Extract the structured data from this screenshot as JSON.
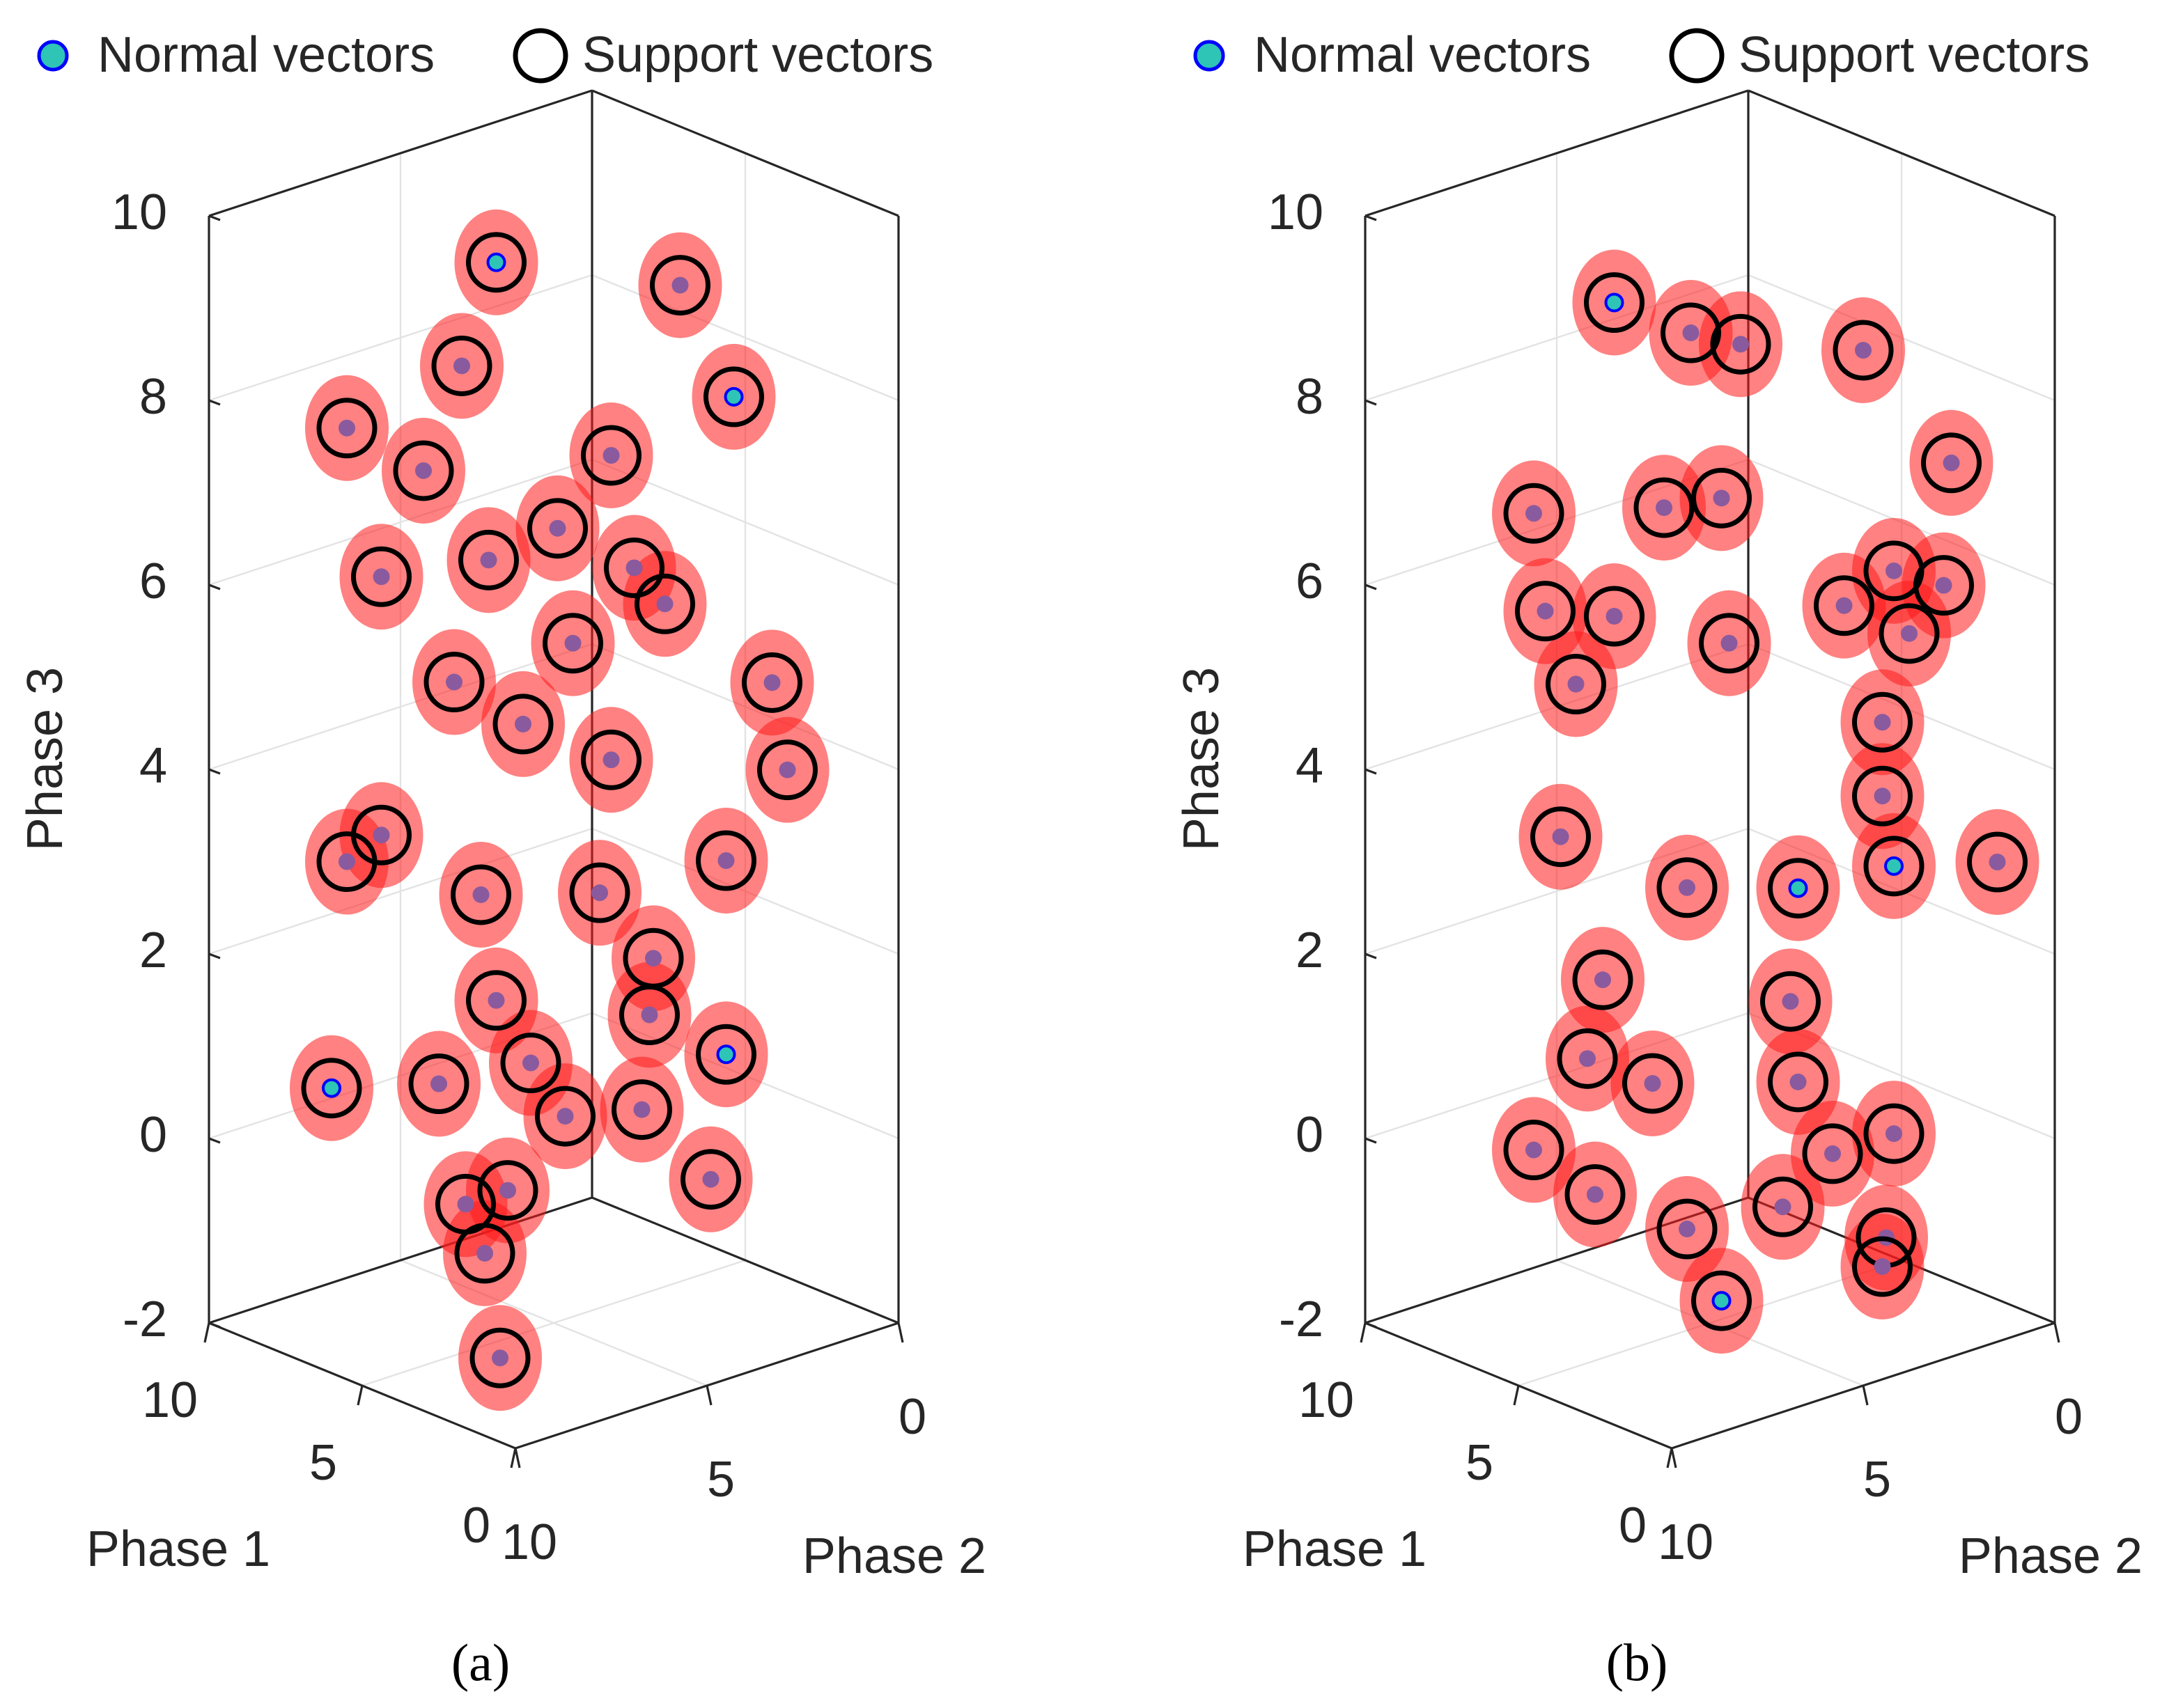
{
  "chart_data": [
    {
      "type": "scatter3d",
      "caption": "(a)",
      "xlabel": "Phase 1",
      "ylabel": "Phase 2",
      "zlabel": "Phase 3",
      "xlim": [
        0,
        10
      ],
      "xticks": [
        0,
        5,
        10
      ],
      "ylim": [
        0,
        10
      ],
      "yticks": [
        0,
        5,
        10
      ],
      "zlim": [
        -2,
        10
      ],
      "zticks": [
        -2,
        0,
        2,
        4,
        6,
        8,
        10
      ],
      "grid": true,
      "boundary_color": "#ff1a1a",
      "point_color": "#8a5a9e",
      "series": [
        {
          "name": "Normal vectors",
          "color": "#2ec4b6",
          "edgecolor": "#0000ff",
          "x": [
            5,
            5,
            5,
            8
          ],
          "y": [
            6.5,
            0.3,
            0.5,
            8.4
          ],
          "z": [
            9.7,
            7.4,
            0.3,
            0.6
          ]
        },
        {
          "name": "Support vectors",
          "color": "#000000",
          "x": [
            5,
            5,
            5,
            5,
            8,
            5,
            5,
            5,
            5,
            5,
            5,
            2,
            5,
            5,
            2,
            5,
            5,
            8,
            5,
            5,
            5,
            5,
            5,
            5,
            8,
            5,
            5,
            5,
            5,
            5,
            5,
            5,
            3,
            5,
            5,
            5,
            5
          ],
          "y": [
            6.5,
            1.7,
            7.4,
            0.3,
            8.0,
            8.4,
            3.5,
            4.9,
            9.5,
            2.1,
            4.5,
            1.7,
            7.6,
            5.8,
            1.3,
            3.5,
            9.5,
            8.0,
            6.9,
            0.5,
            2.4,
            6.5,
            0.5,
            5.6,
            8.4,
            8.0,
            4.7,
            2.7,
            0.9,
            7.3,
            6.2,
            6.8,
            8.0,
            6.7,
            2.9,
            3.8,
            2.5
          ],
          "z": [
            9.7,
            8.8,
            8.7,
            7.4,
            7.7,
            7.7,
            7.2,
            6.6,
            6.7,
            5.4,
            5.3,
            4.9,
            5.3,
            4.6,
            3.9,
            3.9,
            3.9,
            3.0,
            2.9,
            2.4,
            1.6,
            1.7,
            0.3,
            0.9,
            0.6,
            1.0,
            0.2,
            0.0,
            -1.0,
            -0.4,
            -0.4,
            -1.0,
            -1.7,
            6.5,
            5.9,
            2.5,
            1.0
          ]
        }
      ]
    },
    {
      "type": "scatter3d",
      "caption": "(b)",
      "xlabel": "Phase 1",
      "ylabel": "Phase 2",
      "zlabel": "Phase 3",
      "xlim": [
        0,
        10
      ],
      "xticks": [
        0,
        5,
        10
      ],
      "ylim": [
        0,
        10
      ],
      "yticks": [
        0,
        5,
        10
      ],
      "zlim": [
        -2,
        10
      ],
      "zticks": [
        -2,
        0,
        2,
        4,
        6,
        8,
        10
      ],
      "grid": true,
      "boundary_color": "#ff1a1a",
      "point_color": "#8a5a9e",
      "series": [
        {
          "name": "Normal vectors",
          "color": "#2ec4b6",
          "edgecolor": "#0000ff",
          "x": [
            5,
            5,
            5,
            5
          ],
          "y": [
            2.7,
            0.2,
            4.7,
            7.5
          ],
          "z": [
            2.4,
            2.3,
            -1.8,
            9.4
          ]
        },
        {
          "name": "Support vectors",
          "color": "#000000",
          "x": [
            5,
            5,
            5,
            5,
            2,
            5,
            5,
            2,
            5,
            5,
            5,
            5,
            5,
            2,
            5,
            5,
            5,
            5,
            5,
            5,
            0,
            5,
            5,
            5,
            5,
            5,
            5,
            5,
            5,
            5,
            5,
            5,
            5,
            5,
            5,
            5,
            5
          ],
          "y": [
            7.5,
            1.0,
            5.5,
            4.2,
            1.1,
            9.6,
            0.2,
            1.3,
            9.3,
            7.5,
            1.5,
            6.2,
            4.7,
            2.2,
            4.5,
            0.5,
            8.5,
            8.9,
            0.5,
            0.2,
            1.5,
            2.7,
            5.6,
            7.8,
            2.9,
            8.2,
            6.5,
            2.7,
            9.6,
            8.0,
            3.1,
            1.8,
            0.2,
            5.6,
            4.7,
            0.4,
            0.5
          ],
          "z": [
            9.4,
            8.0,
            8.8,
            8.5,
            7.2,
            7.4,
            5.5,
            5.9,
            6.3,
            6.0,
            5.3,
            7.0,
            6.9,
            5.5,
            5.3,
            3.9,
            5.4,
            3.8,
            3.1,
            2.3,
            3.2,
            2.4,
            2.8,
            2.1,
            1.2,
            1.3,
            0.8,
            0.3,
            0.5,
            -0.2,
            -1.0,
            -0.6,
            -0.6,
            -0.9,
            -1.8,
            -1.7,
            -2.0
          ]
        }
      ]
    }
  ]
}
